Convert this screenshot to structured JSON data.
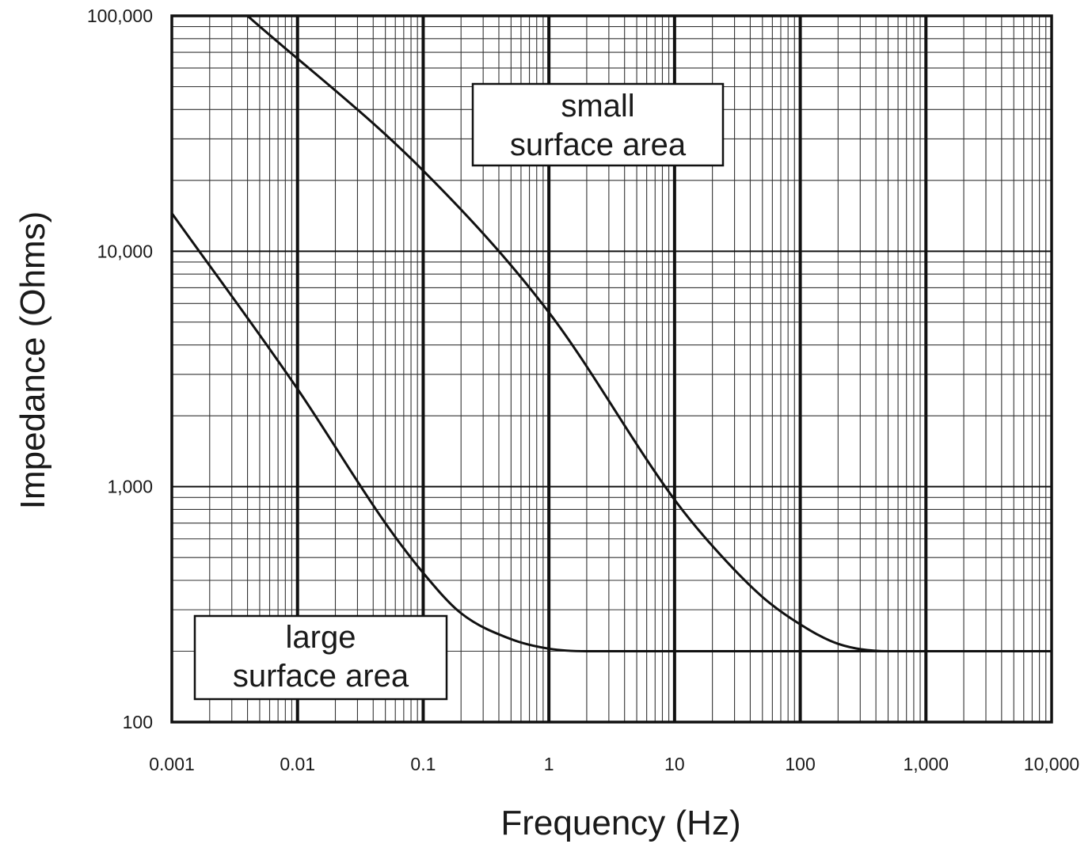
{
  "chart_data": {
    "type": "line",
    "xlabel": "Frequency (Hz)",
    "ylabel": "Impedance (Ohms)",
    "x_scale": "log",
    "y_scale": "log",
    "xlim": [
      0.001,
      10000
    ],
    "ylim": [
      100,
      100000
    ],
    "grid": true,
    "x_ticks": [
      {
        "value": 0.001,
        "label": "0.001"
      },
      {
        "value": 0.01,
        "label": "0.01"
      },
      {
        "value": 0.1,
        "label": "0.1"
      },
      {
        "value": 1,
        "label": "1"
      },
      {
        "value": 10,
        "label": "10"
      },
      {
        "value": 100,
        "label": "100"
      },
      {
        "value": 1000,
        "label": "1,000"
      },
      {
        "value": 10000,
        "label": "10,000"
      }
    ],
    "y_ticks": [
      {
        "value": 100,
        "label": "100"
      },
      {
        "value": 1000,
        "label": "1,000"
      },
      {
        "value": 10000,
        "label": "10,000"
      },
      {
        "value": 100000,
        "label": "100,000"
      }
    ],
    "series": [
      {
        "x": [
          0.001,
          0.01,
          0.05,
          0.1,
          0.2,
          0.5,
          1,
          2,
          10,
          100,
          1000,
          10000
        ],
        "y": [
          14500,
          2600,
          700,
          430,
          290,
          225,
          205,
          200,
          200,
          200,
          200,
          200
        ]
      },
      {
        "x": [
          0.004,
          0.1,
          1,
          10,
          20,
          50,
          100,
          200,
          500,
          1000,
          10000
        ],
        "y": [
          100000,
          22000,
          5500,
          880,
          560,
          340,
          260,
          215,
          200,
          200,
          200
        ]
      }
    ],
    "annotations": [
      {
        "lines": [
          "small",
          "surface area"
        ]
      },
      {
        "lines": [
          "large",
          "surface area"
        ]
      }
    ]
  }
}
